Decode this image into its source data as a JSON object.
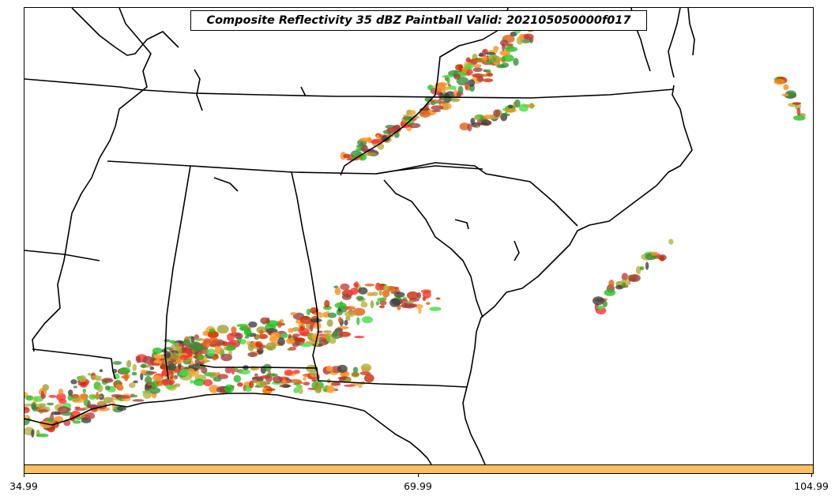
{
  "title": "Composite Reflectivity 35 dBZ Paintball Valid: 202105050000f017",
  "colorbar": {
    "color": "#ffc060",
    "ticks": [
      {
        "label": "34.99"
      },
      {
        "label": "69.99"
      },
      {
        "label": "104.99"
      }
    ]
  },
  "palette": [
    "#ff3030",
    "#ff8c1a",
    "#ffa030",
    "#b5b040",
    "#a0a030",
    "#22c022",
    "#40e040",
    "#3a8f3a",
    "#404040",
    "#a04040",
    "#c04040",
    "#e06010",
    "#cc2a00"
  ]
}
